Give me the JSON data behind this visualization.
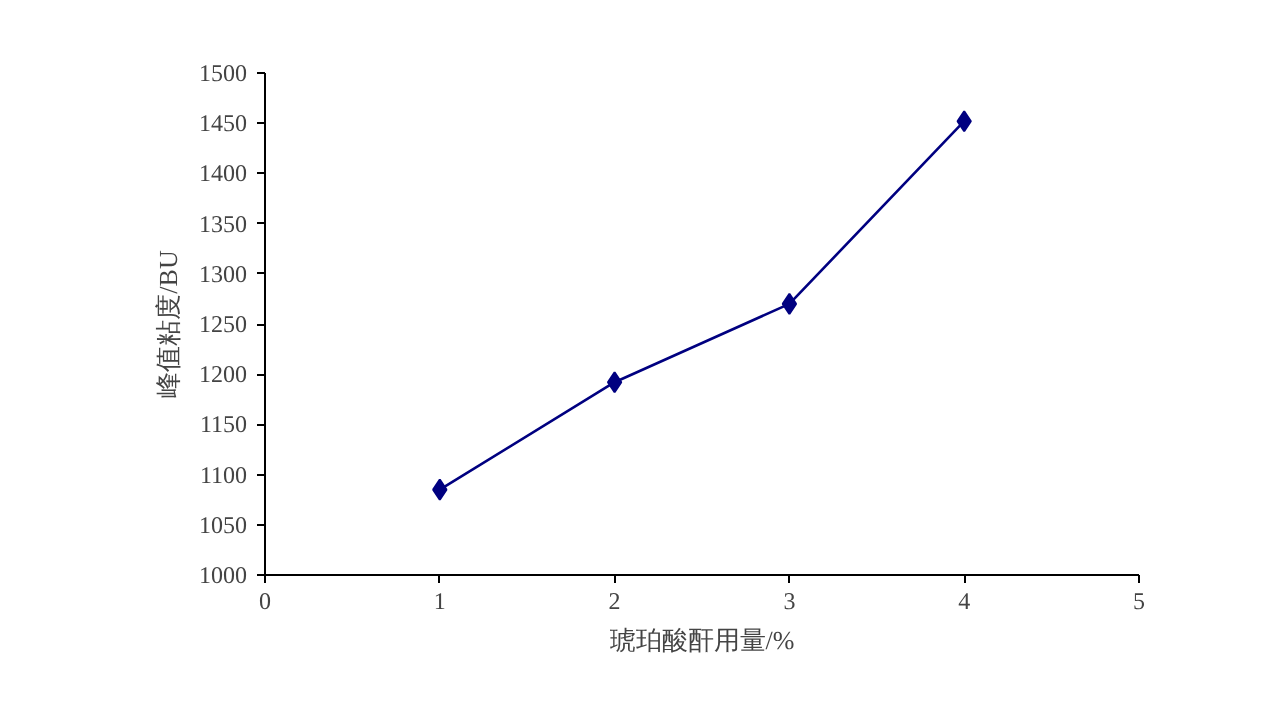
{
  "chart_data": {
    "type": "line",
    "xlabel": "琥珀酸酐用量/%",
    "ylabel": "峰值粘度/BU",
    "x": [
      1,
      2,
      3,
      4
    ],
    "series": [
      {
        "color": "#000080",
        "values": [
          1085,
          1192,
          1270,
          1452
        ]
      }
    ],
    "xlim": [
      0,
      5
    ],
    "xticks": [
      0,
      1,
      2,
      3,
      4,
      5
    ],
    "ylim": [
      1000,
      1500
    ],
    "yticks": [
      1000,
      1050,
      1100,
      1150,
      1200,
      1250,
      1300,
      1350,
      1400,
      1450,
      1500
    ],
    "grid": false,
    "marker": "diamond",
    "line_style": "solid"
  }
}
